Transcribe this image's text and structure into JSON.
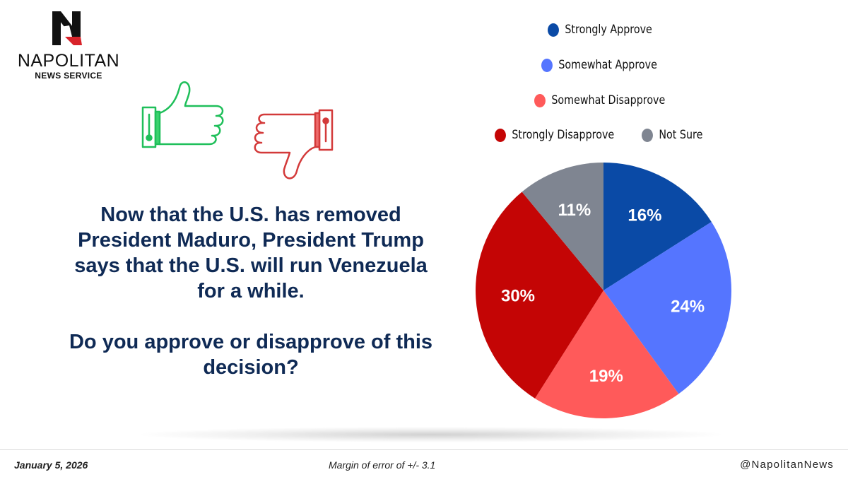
{
  "brand": {
    "name": "NAPOLITAN",
    "sub": "NEWS SERVICE"
  },
  "question": {
    "line1": "Now that the U.S. has removed President Maduro, President Trump says that the U.S. will run Venezuela for a while.",
    "line2": "Do you approve or disapprove of this decision?"
  },
  "chart_data": {
    "type": "pie",
    "categories": [
      "Strongly Approve",
      "Somewhat Approve",
      "Somewhat Disapprove",
      "Strongly Disapprove",
      "Not Sure"
    ],
    "values": [
      16,
      24,
      19,
      30,
      11
    ],
    "labels": [
      "16%",
      "24%",
      "19%",
      "30%",
      "11%"
    ],
    "colors": [
      "#0a4aa6",
      "#5575ff",
      "#ff5a5a",
      "#c40505",
      "#7f8591"
    ],
    "legend_position": "top-right"
  },
  "footer": {
    "date": "January 5, 2026",
    "margin": "Margin of error of +/- 3.1",
    "handle": "@NapolitanNews"
  },
  "icons": {
    "approve": "thumbs-up-icon",
    "disapprove": "thumbs-down-icon"
  }
}
